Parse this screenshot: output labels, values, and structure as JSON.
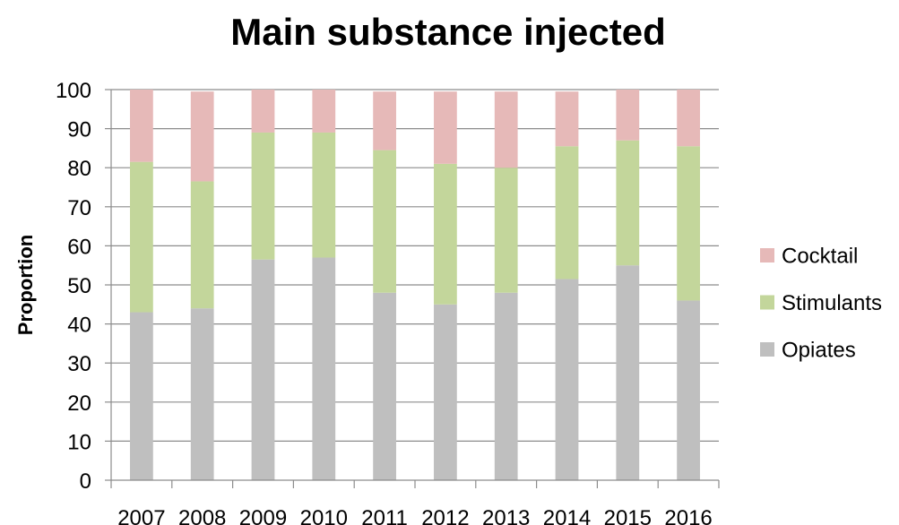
{
  "chart_data": {
    "type": "bar",
    "stacked": true,
    "title": "Main substance injected",
    "xlabel": "",
    "ylabel": "Proportion",
    "ylim": [
      0,
      100
    ],
    "yticks": [
      0,
      10,
      20,
      30,
      40,
      50,
      60,
      70,
      80,
      90,
      100
    ],
    "grid": true,
    "legend_position": "right",
    "categories": [
      "2007",
      "2008",
      "2009",
      "2010",
      "2011",
      "2012",
      "2013",
      "2014",
      "2015",
      "2016"
    ],
    "series": [
      {
        "name": "Opiates",
        "color": "#bfbfbf",
        "values": [
          43,
          44,
          56.5,
          57,
          48,
          45,
          48,
          51.5,
          55,
          46
        ]
      },
      {
        "name": "Stimulants",
        "color": "#c3d69b",
        "values": [
          38.5,
          32.5,
          32.5,
          32,
          36.5,
          36,
          32,
          34,
          32,
          39.5
        ]
      },
      {
        "name": "Cocktail",
        "color": "#e6b9b8",
        "values": [
          18.5,
          23,
          11,
          11,
          15,
          18.5,
          19.5,
          14,
          13,
          14.5
        ]
      }
    ],
    "legend_order": [
      "Cocktail",
      "Stimulants",
      "Opiates"
    ]
  }
}
